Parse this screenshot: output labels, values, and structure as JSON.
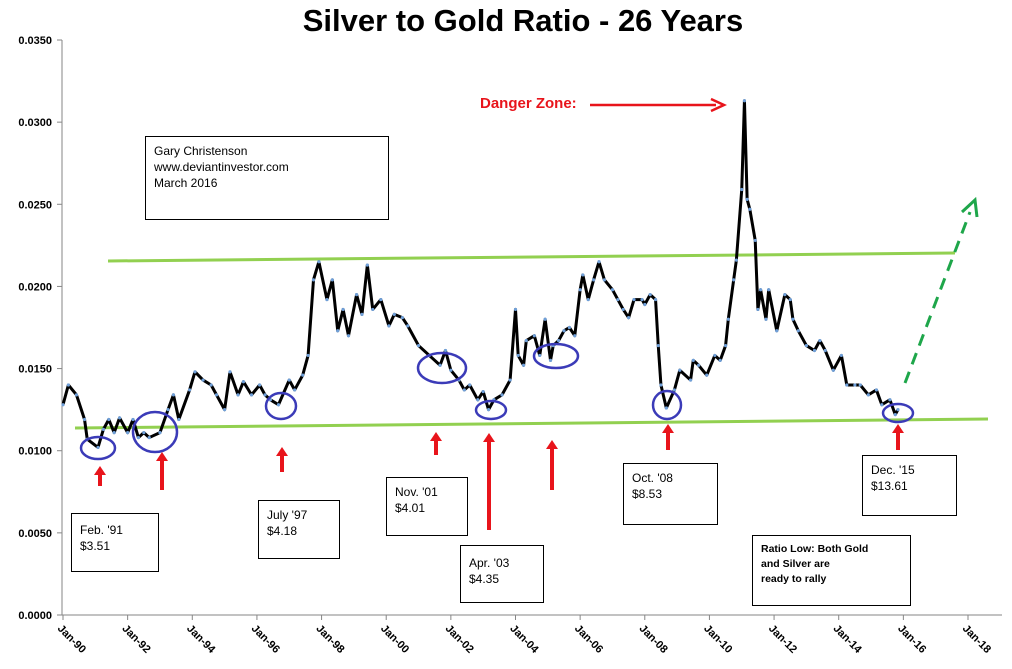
{
  "chart_data": {
    "type": "line",
    "title": "Silver to Gold Ratio - 26 Years",
    "xlabel": "",
    "ylabel": "",
    "ylim": [
      0,
      0.035
    ],
    "xlim": [
      "1990-01",
      "2018-01"
    ],
    "yticks": [
      "0.0000",
      "0.0050",
      "0.0100",
      "0.0150",
      "0.0200",
      "0.0250",
      "0.0300",
      "0.0350"
    ],
    "xticks": [
      "Jan-90",
      "Jan-92",
      "Jan-94",
      "Jan-96",
      "Jan-98",
      "Jan-00",
      "Jan-02",
      "Jan-04",
      "Jan-06",
      "Jan-08",
      "Jan-10",
      "Jan-12",
      "Jan-14",
      "Jan-16",
      "Jan-18"
    ],
    "grid": false,
    "colors": {
      "line": "#000000",
      "markers": "#6f9fd8",
      "trend": "#92d050",
      "projection": "#1ea64a",
      "circles": "#3b3bb8",
      "arrows": "#e8141b"
    },
    "series": [
      {
        "x": [
          "1990-01",
          "1990-03",
          "1990-06",
          "1990-09",
          "1990-10",
          "1991-02",
          "1991-04",
          "1991-06",
          "1991-08",
          "1991-10",
          "1992-01",
          "1992-03",
          "1992-05",
          "1992-07",
          "1992-09",
          "1993-01",
          "1993-04",
          "1993-06",
          "1993-08",
          "1993-12",
          "1994-02",
          "1994-05",
          "1994-08",
          "1994-10",
          "1995-01",
          "1995-03",
          "1995-06",
          "1995-08",
          "1995-11",
          "1996-02",
          "1996-04",
          "1996-06",
          "1996-09",
          "1997-01",
          "1997-03",
          "1997-06",
          "1997-08",
          "1997-10",
          "1997-12",
          "1998-03",
          "1998-05",
          "1998-07",
          "1998-09",
          "1998-11",
          "1999-02",
          "1999-04",
          "1999-06",
          "1999-08",
          "1999-11",
          "2000-02",
          "2000-04",
          "2000-07",
          "2000-09",
          "2001-01",
          "2001-05",
          "2001-09",
          "2001-11",
          "2002-01",
          "2002-04",
          "2002-06",
          "2002-08",
          "2002-11",
          "2003-01",
          "2003-03",
          "2003-05",
          "2003-08",
          "2003-11",
          "2004-01",
          "2004-02",
          "2004-04",
          "2004-05",
          "2004-08",
          "2004-10",
          "2004-12",
          "2005-02",
          "2005-03",
          "2005-05",
          "2005-07",
          "2005-09",
          "2005-11",
          "2006-01",
          "2006-02",
          "2006-04",
          "2006-06",
          "2006-08",
          "2006-10",
          "2007-01",
          "2007-03",
          "2007-05",
          "2007-07",
          "2007-09",
          "2007-12",
          "2008-01",
          "2008-03",
          "2008-05",
          "2008-06",
          "2008-07",
          "2008-09",
          "2008-12",
          "2009-02",
          "2009-06",
          "2009-07",
          "2009-09",
          "2009-12",
          "2010-03",
          "2010-05",
          "2010-07",
          "2010-08",
          "2010-10",
          "2010-11",
          "2011-01",
          "2011-02",
          "2011-03",
          "2011-04",
          "2011-06",
          "2011-07",
          "2011-08",
          "2011-10",
          "2011-11",
          "2012-02",
          "2012-05",
          "2012-07",
          "2012-08",
          "2012-10",
          "2013-01",
          "2013-04",
          "2013-06",
          "2013-08",
          "2013-11",
          "2014-02",
          "2014-04",
          "2014-07",
          "2014-09",
          "2014-12",
          "2015-03",
          "2015-05",
          "2015-08",
          "2015-10",
          "2015-11"
        ],
        "values": [
          0.0128,
          0.014,
          0.0134,
          0.0119,
          0.0107,
          0.0102,
          0.0113,
          0.0119,
          0.0111,
          0.012,
          0.0111,
          0.0119,
          0.0108,
          0.0111,
          0.0108,
          0.0111,
          0.0125,
          0.0134,
          0.0119,
          0.0137,
          0.0148,
          0.0143,
          0.014,
          0.0134,
          0.0125,
          0.0148,
          0.0134,
          0.0142,
          0.0134,
          0.014,
          0.0134,
          0.0131,
          0.0128,
          0.0143,
          0.0137,
          0.0146,
          0.0158,
          0.0204,
          0.0215,
          0.0192,
          0.0204,
          0.0173,
          0.0186,
          0.017,
          0.0195,
          0.0183,
          0.0213,
          0.0186,
          0.0192,
          0.0176,
          0.0183,
          0.0181,
          0.0176,
          0.0164,
          0.0158,
          0.0152,
          0.0161,
          0.0149,
          0.0143,
          0.0137,
          0.014,
          0.0131,
          0.0136,
          0.0125,
          0.0131,
          0.0134,
          0.0143,
          0.0186,
          0.0158,
          0.0152,
          0.0167,
          0.017,
          0.0158,
          0.018,
          0.0155,
          0.0164,
          0.0167,
          0.0173,
          0.0175,
          0.017,
          0.0198,
          0.0207,
          0.0192,
          0.0204,
          0.0215,
          0.0204,
          0.0198,
          0.0192,
          0.0186,
          0.0181,
          0.0192,
          0.0192,
          0.0189,
          0.0195,
          0.0192,
          0.0164,
          0.014,
          0.0126,
          0.0137,
          0.0149,
          0.0143,
          0.0155,
          0.0152,
          0.0146,
          0.0158,
          0.0155,
          0.0164,
          0.018,
          0.0204,
          0.0216,
          0.0259,
          0.0313,
          0.0253,
          0.0247,
          0.0228,
          0.0186,
          0.0198,
          0.018,
          0.0198,
          0.0173,
          0.0195,
          0.0192,
          0.018,
          0.0173,
          0.0164,
          0.0161,
          0.0167,
          0.0161,
          0.0149,
          0.0158,
          0.014,
          0.014,
          0.014,
          0.0134,
          0.0137,
          0.0128,
          0.0131,
          0.0122,
          0.0125
        ]
      }
    ],
    "annotations": {
      "author": [
        "Gary Christenson",
        "www.deviantinvestor.com",
        "March 2016"
      ],
      "danger_zone": "Danger Zone:",
      "lows": [
        {
          "date": "Feb. '91",
          "price": "$3.51"
        },
        {
          "date": "July '97",
          "price": "$4.18"
        },
        {
          "date": "Nov. '01",
          "price": "$4.01"
        },
        {
          "date": "Apr. '03",
          "price": "$4.35"
        },
        {
          "date": "Oct. '08",
          "price": "$8.53"
        },
        {
          "date": "Dec. '15",
          "price": "$13.61"
        }
      ],
      "ratio_low_note": [
        "Ratio Low: Both Gold",
        "and Silver  are",
        "ready to rally"
      ]
    }
  }
}
